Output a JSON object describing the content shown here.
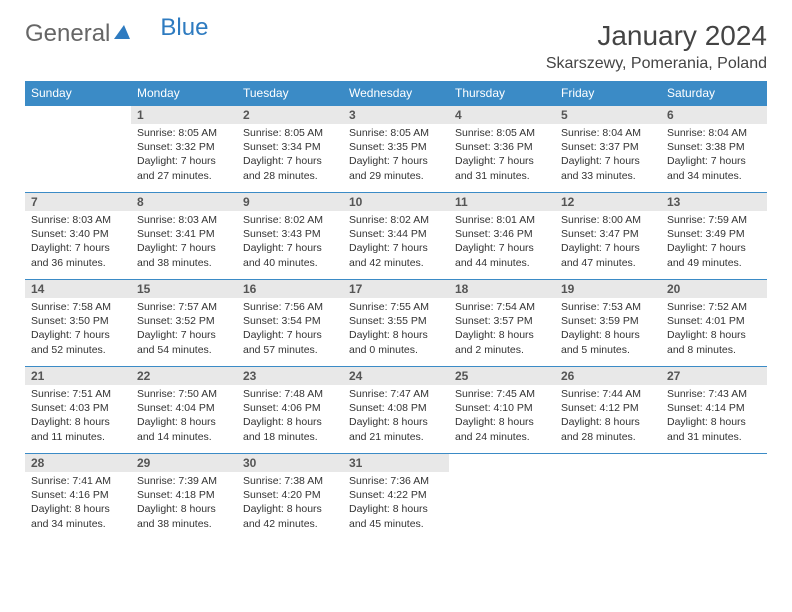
{
  "logo": {
    "text1": "General",
    "text2": "Blue"
  },
  "header": {
    "month_title": "January 2024",
    "location": "Skarszewy, Pomerania, Poland"
  },
  "colors": {
    "header_bg": "#3b8bc6",
    "header_text": "#ffffff",
    "daynum_bg": "#e8e8e8",
    "row_border": "#3b8bc6",
    "logo_blue": "#2e7bc0"
  },
  "weekdays": [
    "Sunday",
    "Monday",
    "Tuesday",
    "Wednesday",
    "Thursday",
    "Friday",
    "Saturday"
  ],
  "weeks": [
    [
      {
        "n": "",
        "lines": []
      },
      {
        "n": "1",
        "lines": [
          "Sunrise: 8:05 AM",
          "Sunset: 3:32 PM",
          "Daylight: 7 hours",
          "and 27 minutes."
        ]
      },
      {
        "n": "2",
        "lines": [
          "Sunrise: 8:05 AM",
          "Sunset: 3:34 PM",
          "Daylight: 7 hours",
          "and 28 minutes."
        ]
      },
      {
        "n": "3",
        "lines": [
          "Sunrise: 8:05 AM",
          "Sunset: 3:35 PM",
          "Daylight: 7 hours",
          "and 29 minutes."
        ]
      },
      {
        "n": "4",
        "lines": [
          "Sunrise: 8:05 AM",
          "Sunset: 3:36 PM",
          "Daylight: 7 hours",
          "and 31 minutes."
        ]
      },
      {
        "n": "5",
        "lines": [
          "Sunrise: 8:04 AM",
          "Sunset: 3:37 PM",
          "Daylight: 7 hours",
          "and 33 minutes."
        ]
      },
      {
        "n": "6",
        "lines": [
          "Sunrise: 8:04 AM",
          "Sunset: 3:38 PM",
          "Daylight: 7 hours",
          "and 34 minutes."
        ]
      }
    ],
    [
      {
        "n": "7",
        "lines": [
          "Sunrise: 8:03 AM",
          "Sunset: 3:40 PM",
          "Daylight: 7 hours",
          "and 36 minutes."
        ]
      },
      {
        "n": "8",
        "lines": [
          "Sunrise: 8:03 AM",
          "Sunset: 3:41 PM",
          "Daylight: 7 hours",
          "and 38 minutes."
        ]
      },
      {
        "n": "9",
        "lines": [
          "Sunrise: 8:02 AM",
          "Sunset: 3:43 PM",
          "Daylight: 7 hours",
          "and 40 minutes."
        ]
      },
      {
        "n": "10",
        "lines": [
          "Sunrise: 8:02 AM",
          "Sunset: 3:44 PM",
          "Daylight: 7 hours",
          "and 42 minutes."
        ]
      },
      {
        "n": "11",
        "lines": [
          "Sunrise: 8:01 AM",
          "Sunset: 3:46 PM",
          "Daylight: 7 hours",
          "and 44 minutes."
        ]
      },
      {
        "n": "12",
        "lines": [
          "Sunrise: 8:00 AM",
          "Sunset: 3:47 PM",
          "Daylight: 7 hours",
          "and 47 minutes."
        ]
      },
      {
        "n": "13",
        "lines": [
          "Sunrise: 7:59 AM",
          "Sunset: 3:49 PM",
          "Daylight: 7 hours",
          "and 49 minutes."
        ]
      }
    ],
    [
      {
        "n": "14",
        "lines": [
          "Sunrise: 7:58 AM",
          "Sunset: 3:50 PM",
          "Daylight: 7 hours",
          "and 52 minutes."
        ]
      },
      {
        "n": "15",
        "lines": [
          "Sunrise: 7:57 AM",
          "Sunset: 3:52 PM",
          "Daylight: 7 hours",
          "and 54 minutes."
        ]
      },
      {
        "n": "16",
        "lines": [
          "Sunrise: 7:56 AM",
          "Sunset: 3:54 PM",
          "Daylight: 7 hours",
          "and 57 minutes."
        ]
      },
      {
        "n": "17",
        "lines": [
          "Sunrise: 7:55 AM",
          "Sunset: 3:55 PM",
          "Daylight: 8 hours",
          "and 0 minutes."
        ]
      },
      {
        "n": "18",
        "lines": [
          "Sunrise: 7:54 AM",
          "Sunset: 3:57 PM",
          "Daylight: 8 hours",
          "and 2 minutes."
        ]
      },
      {
        "n": "19",
        "lines": [
          "Sunrise: 7:53 AM",
          "Sunset: 3:59 PM",
          "Daylight: 8 hours",
          "and 5 minutes."
        ]
      },
      {
        "n": "20",
        "lines": [
          "Sunrise: 7:52 AM",
          "Sunset: 4:01 PM",
          "Daylight: 8 hours",
          "and 8 minutes."
        ]
      }
    ],
    [
      {
        "n": "21",
        "lines": [
          "Sunrise: 7:51 AM",
          "Sunset: 4:03 PM",
          "Daylight: 8 hours",
          "and 11 minutes."
        ]
      },
      {
        "n": "22",
        "lines": [
          "Sunrise: 7:50 AM",
          "Sunset: 4:04 PM",
          "Daylight: 8 hours",
          "and 14 minutes."
        ]
      },
      {
        "n": "23",
        "lines": [
          "Sunrise: 7:48 AM",
          "Sunset: 4:06 PM",
          "Daylight: 8 hours",
          "and 18 minutes."
        ]
      },
      {
        "n": "24",
        "lines": [
          "Sunrise: 7:47 AM",
          "Sunset: 4:08 PM",
          "Daylight: 8 hours",
          "and 21 minutes."
        ]
      },
      {
        "n": "25",
        "lines": [
          "Sunrise: 7:45 AM",
          "Sunset: 4:10 PM",
          "Daylight: 8 hours",
          "and 24 minutes."
        ]
      },
      {
        "n": "26",
        "lines": [
          "Sunrise: 7:44 AM",
          "Sunset: 4:12 PM",
          "Daylight: 8 hours",
          "and 28 minutes."
        ]
      },
      {
        "n": "27",
        "lines": [
          "Sunrise: 7:43 AM",
          "Sunset: 4:14 PM",
          "Daylight: 8 hours",
          "and 31 minutes."
        ]
      }
    ],
    [
      {
        "n": "28",
        "lines": [
          "Sunrise: 7:41 AM",
          "Sunset: 4:16 PM",
          "Daylight: 8 hours",
          "and 34 minutes."
        ]
      },
      {
        "n": "29",
        "lines": [
          "Sunrise: 7:39 AM",
          "Sunset: 4:18 PM",
          "Daylight: 8 hours",
          "and 38 minutes."
        ]
      },
      {
        "n": "30",
        "lines": [
          "Sunrise: 7:38 AM",
          "Sunset: 4:20 PM",
          "Daylight: 8 hours",
          "and 42 minutes."
        ]
      },
      {
        "n": "31",
        "lines": [
          "Sunrise: 7:36 AM",
          "Sunset: 4:22 PM",
          "Daylight: 8 hours",
          "and 45 minutes."
        ]
      },
      {
        "n": "",
        "lines": []
      },
      {
        "n": "",
        "lines": []
      },
      {
        "n": "",
        "lines": []
      }
    ]
  ]
}
